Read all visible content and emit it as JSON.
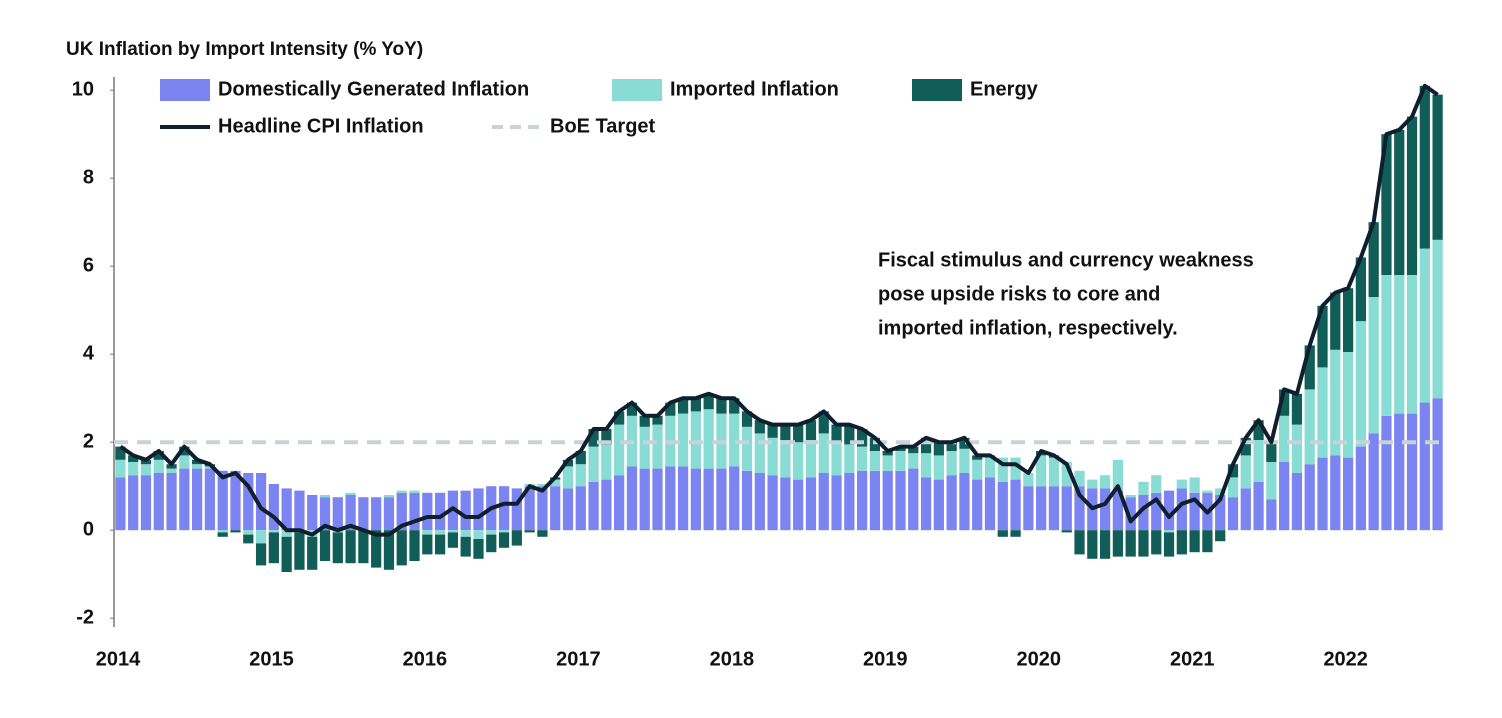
{
  "chart_data": {
    "type": "bar",
    "stacked": true,
    "title": "UK Inflation by Import Intensity (% YoY)",
    "annotation": [
      "Fiscal stimulus and currency weakness",
      "pose upside risks to core and",
      "imported inflation, respectively."
    ],
    "categories": [
      "2014",
      null,
      null,
      null,
      null,
      null,
      null,
      null,
      null,
      null,
      null,
      null,
      "2015",
      null,
      null,
      null,
      null,
      null,
      null,
      null,
      null,
      null,
      null,
      null,
      "2016",
      null,
      null,
      null,
      null,
      null,
      null,
      null,
      null,
      null,
      null,
      null,
      "2017",
      null,
      null,
      null,
      null,
      null,
      null,
      null,
      null,
      null,
      null,
      null,
      "2018",
      null,
      null,
      null,
      null,
      null,
      null,
      null,
      null,
      null,
      null,
      null,
      "2019",
      null,
      null,
      null,
      null,
      null,
      null,
      null,
      null,
      null,
      null,
      null,
      "2020",
      null,
      null,
      null,
      null,
      null,
      null,
      null,
      null,
      null,
      null,
      null,
      "2021",
      null,
      null,
      null,
      null,
      null,
      null,
      null,
      null,
      null,
      null,
      null,
      "2022",
      null,
      null,
      null,
      null,
      null,
      null,
      null
    ],
    "ylim": [
      -2.2,
      10.3
    ],
    "yticks": [
      -2,
      0,
      2,
      4,
      6,
      8,
      10
    ],
    "grid": false,
    "series": [
      {
        "name": "Domestically Generated Inflation",
        "type": "bar",
        "color": "#7b84f0",
        "values": [
          1.2,
          1.25,
          1.25,
          1.3,
          1.3,
          1.4,
          1.4,
          1.4,
          1.35,
          1.35,
          1.3,
          1.3,
          1.05,
          0.95,
          0.9,
          0.8,
          0.75,
          0.75,
          0.8,
          0.75,
          0.75,
          0.75,
          0.85,
          0.85,
          0.85,
          0.85,
          0.9,
          0.9,
          0.95,
          1.0,
          1.0,
          0.95,
          1.0,
          1.0,
          1.0,
          0.95,
          1.0,
          1.1,
          1.15,
          1.25,
          1.45,
          1.4,
          1.4,
          1.45,
          1.45,
          1.4,
          1.4,
          1.4,
          1.45,
          1.35,
          1.3,
          1.25,
          1.2,
          1.15,
          1.2,
          1.3,
          1.25,
          1.3,
          1.35,
          1.35,
          1.35,
          1.35,
          1.4,
          1.2,
          1.15,
          1.25,
          1.3,
          1.15,
          1.2,
          1.1,
          1.15,
          1.0,
          1.0,
          1.0,
          1.0,
          1.0,
          0.95,
          0.95,
          0.9,
          0.75,
          0.8,
          0.85,
          0.9,
          0.95,
          0.85,
          0.85,
          0.8,
          0.75,
          0.95,
          1.1,
          0.7,
          1.55,
          1.3,
          1.5,
          1.65,
          1.7,
          1.65,
          1.9,
          2.2,
          2.6,
          2.65,
          2.65,
          2.9,
          3.0
        ]
      },
      {
        "name": "Imported Inflation",
        "type": "bar",
        "color": "#88dcd4",
        "values": [
          0.4,
          0.3,
          0.25,
          0.3,
          0.1,
          0.3,
          0.1,
          0.05,
          -0.05,
          0,
          -0.1,
          -0.3,
          -0.05,
          -0.15,
          -0.05,
          -0.15,
          0.05,
          -0.05,
          0.05,
          0,
          0,
          0.05,
          0.05,
          0.05,
          -0.1,
          -0.1,
          -0.05,
          -0.15,
          -0.2,
          -0.1,
          -0.05,
          0,
          0.05,
          0.05,
          0.15,
          0.5,
          0.5,
          0.8,
          0.8,
          1.15,
          1.15,
          0.95,
          1.0,
          1.15,
          1.2,
          1.3,
          1.35,
          1.25,
          1.2,
          1.0,
          0.9,
          0.85,
          0.85,
          0.85,
          0.85,
          0.9,
          0.75,
          0.65,
          0.55,
          0.45,
          0.35,
          0.45,
          0.35,
          0.55,
          0.55,
          0.55,
          0.55,
          0.45,
          0.45,
          0.55,
          0.5,
          0.3,
          0.7,
          0.65,
          0.55,
          0.35,
          0.2,
          0.3,
          0.7,
          0.05,
          0.3,
          0.4,
          -0.05,
          0.2,
          0.35,
          0.05,
          0.15,
          0.45,
          0.75,
          0.95,
          0.85,
          1.05,
          1.1,
          1.7,
          2.05,
          2.4,
          2.4,
          2.85,
          3.1,
          3.2,
          3.15,
          3.15,
          3.5,
          3.6
        ]
      },
      {
        "name": "Energy",
        "type": "bar",
        "color": "#115e59",
        "values": [
          0.3,
          0.15,
          0.1,
          0.2,
          0.1,
          0.2,
          0.1,
          0.05,
          -0.1,
          -0.05,
          -0.2,
          -0.5,
          -0.7,
          -0.8,
          -0.85,
          -0.75,
          -0.7,
          -0.7,
          -0.75,
          -0.75,
          -0.85,
          -0.9,
          -0.8,
          -0.7,
          -0.45,
          -0.45,
          -0.35,
          -0.45,
          -0.45,
          -0.4,
          -0.35,
          -0.35,
          -0.05,
          -0.15,
          0.05,
          0.15,
          0.3,
          0.4,
          0.35,
          0.3,
          0.3,
          0.25,
          0.2,
          0.3,
          0.35,
          0.3,
          0.35,
          0.35,
          0.35,
          0.35,
          0.3,
          0.3,
          0.35,
          0.4,
          0.45,
          0.5,
          0.4,
          0.45,
          0.4,
          0.3,
          0.1,
          0.1,
          0.15,
          0.35,
          0.3,
          0.2,
          0.25,
          0.1,
          0.05,
          -0.15,
          -0.15,
          0.0,
          0.1,
          0.05,
          -0.05,
          -0.55,
          -0.65,
          -0.65,
          -0.6,
          -0.6,
          -0.6,
          -0.55,
          -0.55,
          -0.55,
          -0.5,
          -0.5,
          -0.25,
          0.3,
          0.4,
          0.45,
          0.45,
          0.6,
          0.7,
          1.0,
          1.4,
          1.3,
          1.45,
          1.45,
          1.7,
          3.2,
          3.3,
          3.6,
          3.7,
          3.3
        ]
      },
      {
        "name": "Headline CPI Inflation",
        "type": "line",
        "color": "#0f1f2e",
        "values": [
          1.9,
          1.7,
          1.6,
          1.8,
          1.5,
          1.9,
          1.6,
          1.5,
          1.2,
          1.3,
          1.0,
          0.5,
          0.3,
          0.0,
          0.0,
          -0.1,
          0.1,
          0.0,
          0.1,
          0.0,
          -0.1,
          -0.1,
          0.1,
          0.2,
          0.3,
          0.3,
          0.5,
          0.3,
          0.3,
          0.5,
          0.6,
          0.6,
          1.0,
          0.9,
          1.2,
          1.6,
          1.8,
          2.3,
          2.3,
          2.7,
          2.9,
          2.6,
          2.6,
          2.9,
          3.0,
          3.0,
          3.1,
          3.0,
          3.0,
          2.7,
          2.5,
          2.4,
          2.4,
          2.4,
          2.5,
          2.7,
          2.4,
          2.4,
          2.3,
          2.1,
          1.8,
          1.9,
          1.9,
          2.1,
          2.0,
          2.0,
          2.1,
          1.7,
          1.7,
          1.5,
          1.5,
          1.3,
          1.8,
          1.7,
          1.5,
          0.8,
          0.5,
          0.6,
          1.0,
          0.2,
          0.5,
          0.7,
          0.3,
          0.6,
          0.7,
          0.4,
          0.7,
          1.5,
          2.1,
          2.5,
          2.0,
          3.2,
          3.1,
          4.2,
          5.1,
          5.4,
          5.5,
          6.2,
          7.0,
          9.0,
          9.1,
          9.4,
          10.1,
          9.9
        ]
      }
    ],
    "target": {
      "name": "BoE Target",
      "value": 2,
      "color": "#c9d1d9"
    }
  }
}
